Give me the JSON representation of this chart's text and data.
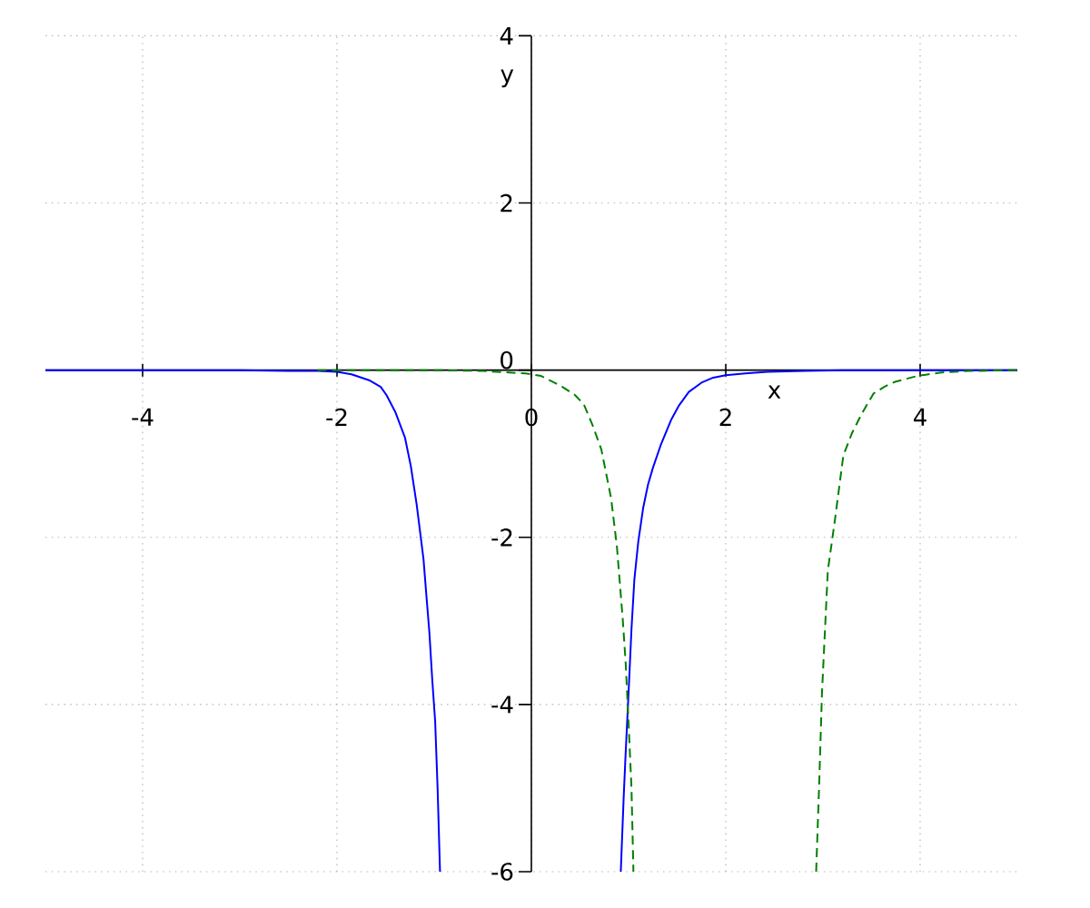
{
  "chart_data": {
    "type": "line",
    "xlabel": "x",
    "ylabel": "y",
    "xlim": [
      -5,
      5
    ],
    "ylim": [
      -6,
      4
    ],
    "xticks": [
      -4,
      -2,
      0,
      2,
      4
    ],
    "yticks": [
      -6,
      -4,
      -2,
      0,
      2,
      4
    ],
    "grid": true,
    "series": [
      {
        "color": "#0000ff",
        "line_style": "solid",
        "x": [
          -5,
          -4,
          -3,
          -2.5,
          -2.2,
          -2,
          -1.85,
          -1.67,
          -1.55,
          -1.49,
          -1.4,
          -1.3,
          -1.24,
          -1.18,
          -1.11,
          -1.08,
          -1.05,
          -1.02,
          -0.99,
          -0.965,
          -0.94,
          0,
          0.92,
          0.95,
          0.97,
          1.0,
          1.03,
          1.06,
          1.1,
          1.15,
          1.2,
          1.25,
          1.33,
          1.44,
          1.52,
          1.62,
          1.75,
          1.87,
          2.0,
          2.2,
          2.43,
          2.8,
          3.2,
          4,
          5
        ],
        "values": [
          0,
          0,
          0,
          -0.01,
          -0.01,
          -0.02,
          -0.05,
          -0.12,
          -0.2,
          -0.3,
          -0.5,
          -0.81,
          -1.15,
          -1.61,
          -2.26,
          -2.7,
          -3.13,
          -3.7,
          -4.2,
          -5.0,
          -6,
          null,
          -6,
          -5.1,
          -4.58,
          -3.86,
          -3.1,
          -2.5,
          -2.05,
          -1.65,
          -1.37,
          -1.17,
          -0.9,
          -0.59,
          -0.42,
          -0.26,
          -0.15,
          -0.09,
          -0.06,
          -0.04,
          -0.02,
          -0.01,
          0,
          0,
          0
        ]
      },
      {
        "color": "#008000",
        "line_style": "dashed",
        "x": [
          -2.2,
          -1.5,
          -1,
          -0.5,
          -0.06,
          0.1,
          0.32,
          0.45,
          0.54,
          0.63,
          0.72,
          0.82,
          0.88,
          0.94,
          0.97,
          1.0,
          1.03,
          1.05,
          2,
          2.93,
          2.96,
          2.99,
          3.05,
          3.12,
          3.21,
          3.3,
          3.4,
          3.52,
          3.63,
          3.74,
          3.97,
          4.2,
          4.5,
          5
        ],
        "values": [
          0,
          0,
          0,
          -0.01,
          -0.04,
          -0.07,
          -0.2,
          -0.3,
          -0.41,
          -0.66,
          -0.95,
          -1.53,
          -2.11,
          -2.98,
          -3.5,
          -4.22,
          -5.0,
          -6,
          null,
          -6,
          -5.0,
          -3.86,
          -2.4,
          -1.82,
          -1.02,
          -0.75,
          -0.52,
          -0.28,
          -0.2,
          -0.14,
          -0.07,
          -0.03,
          -0.01,
          0
        ]
      }
    ]
  }
}
